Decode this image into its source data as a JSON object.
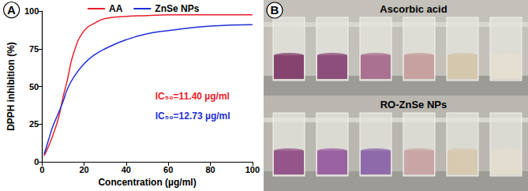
{
  "chart_data": {
    "type": "line",
    "x_label": "Concentration (µg/ml)",
    "y_label": "DPPH inhibition (%)",
    "x": [
      1,
      3,
      5,
      8,
      10,
      12,
      15,
      20,
      25,
      30,
      40,
      50,
      60,
      80,
      100
    ],
    "series": [
      {
        "name": "AA",
        "color": "#e8202a",
        "values": [
          4,
          10,
          17,
          30,
          43,
          54,
          72,
          87,
          92,
          95,
          96.5,
          97,
          97.5,
          97.5,
          97.5
        ]
      },
      {
        "name": "ZnSe NPs",
        "color": "#1f2fd6",
        "values": [
          5,
          14,
          23,
          33,
          40,
          48,
          56,
          65,
          71,
          75,
          81,
          85,
          87,
          90,
          91
        ]
      }
    ],
    "xlim": [
      0,
      100
    ],
    "xticks": [
      0,
      20,
      40,
      60,
      80,
      100
    ],
    "ylim": [
      0,
      100
    ],
    "yticks": [
      0,
      25,
      50,
      75,
      100
    ],
    "grid": false,
    "legend": "top",
    "annotations": [
      {
        "text": "A"
      },
      {
        "text": "IC₅₀=11.40 µg/ml",
        "color": "#e8202a"
      },
      {
        "text": "IC₅₀=12.73 µg/ml",
        "color": "#1f2fd6"
      }
    ]
  },
  "panel_b": {
    "label": "B",
    "rows": [
      {
        "title": "Ascorbic acid",
        "colors": [
          "#86436f",
          "#8c4f7c",
          "#aa7290",
          "#c7a0a0",
          "#d5c6ae",
          "#e3ded0"
        ]
      },
      {
        "title": "RO-ZnSe NPs",
        "colors": [
          "#93558a",
          "#9a62a0",
          "#8f6aaa",
          "#c9a6a6",
          "#d8c9b1",
          "#e2ddcf"
        ]
      }
    ]
  }
}
